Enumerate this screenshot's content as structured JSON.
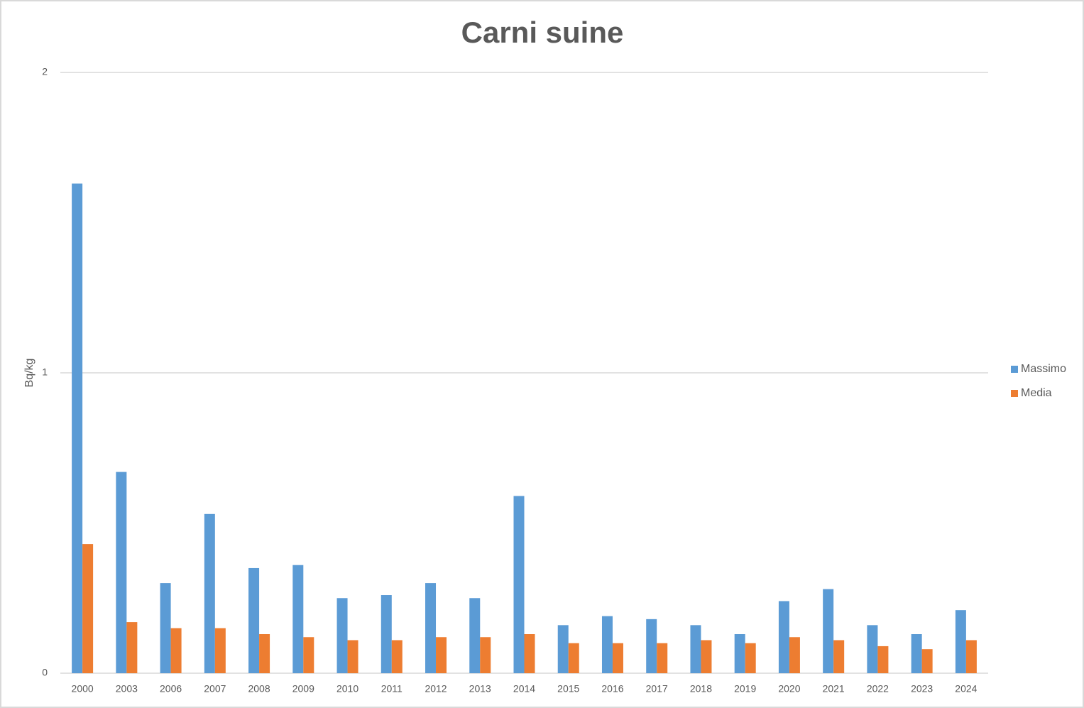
{
  "chart_data": {
    "type": "bar",
    "title": "Carni suine",
    "y_label": "Bq/kg",
    "categories": [
      "2000",
      "2003",
      "2006",
      "2007",
      "2008",
      "2009",
      "2010",
      "2011",
      "2012",
      "2013",
      "2014",
      "2015",
      "2016",
      "2017",
      "2018",
      "2019",
      "2020",
      "2021",
      "2022",
      "2023",
      "2024"
    ],
    "series": [
      {
        "name": "Massimo",
        "color": "#5b9bd5",
        "values": [
          1.63,
          0.67,
          0.3,
          0.53,
          0.35,
          0.36,
          0.25,
          0.26,
          0.3,
          0.25,
          0.59,
          0.16,
          0.19,
          0.18,
          0.16,
          0.13,
          0.24,
          0.28,
          0.16,
          0.13,
          0.21
        ]
      },
      {
        "name": "Media",
        "color": "#ed7d31",
        "values": [
          0.43,
          0.17,
          0.15,
          0.15,
          0.13,
          0.12,
          0.11,
          0.11,
          0.12,
          0.12,
          0.13,
          0.1,
          0.1,
          0.1,
          0.11,
          0.1,
          0.12,
          0.11,
          0.09,
          0.08,
          0.11
        ]
      }
    ],
    "ylim": [
      0,
      2
    ],
    "yticks": [
      0,
      1,
      2
    ],
    "grid": true,
    "legend": "right"
  }
}
